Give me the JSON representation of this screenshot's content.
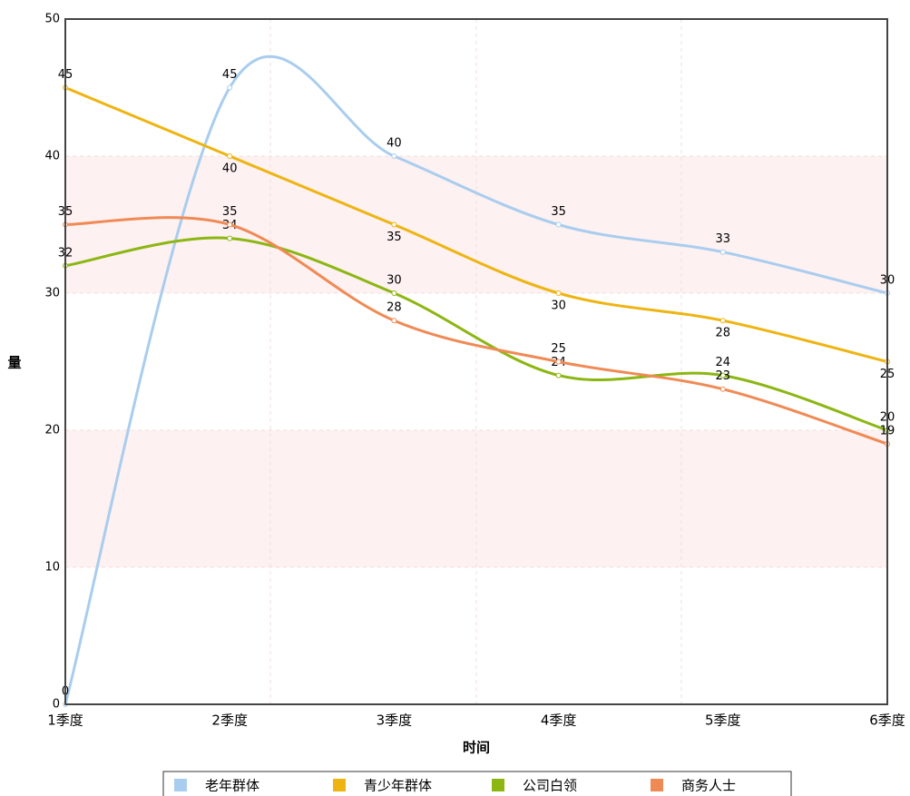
{
  "chart_data": {
    "type": "line",
    "x_label": "时间",
    "y_label": "量",
    "categories": [
      "1季度",
      "2季度",
      "3季度",
      "4季度",
      "5季度",
      "6季度"
    ],
    "series": [
      {
        "name": "老年群体",
        "color": "#a9cdee",
        "values": [
          0,
          45,
          40,
          35,
          33,
          30
        ]
      },
      {
        "name": "青少年群体",
        "color": "#eeb411",
        "values": [
          45,
          40,
          35,
          30,
          28,
          25
        ]
      },
      {
        "name": "公司白领",
        "color": "#8cb612",
        "values": [
          32,
          34,
          30,
          24,
          24,
          20
        ]
      },
      {
        "name": "商务人士",
        "color": "#f08a55",
        "values": [
          35,
          35,
          28,
          25,
          23,
          19
        ]
      }
    ],
    "ylim": [
      0,
      50
    ],
    "yticks": [
      0,
      10,
      20,
      30,
      40,
      50
    ],
    "grid": true,
    "smooth": true,
    "legend": "bottom"
  }
}
